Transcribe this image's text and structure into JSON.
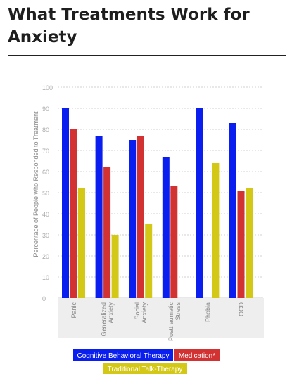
{
  "page": {
    "title": "What Treatments Work for Anxiety"
  },
  "chart_data": {
    "type": "bar",
    "title": "What Treatments Work for Anxiety",
    "ylabel": "Percentage of People who Responded to Treatment",
    "xlabel": "",
    "ylim": [
      0,
      100
    ],
    "yticks": [
      0,
      10,
      20,
      30,
      40,
      50,
      60,
      70,
      80,
      90,
      100
    ],
    "grid": true,
    "legend_position": "bottom",
    "categories": [
      "Panic",
      "Generalized Anxiety",
      "Social Anxiety",
      "Posttraumatic Stress",
      "Phobia",
      "OCD"
    ],
    "category_lines": [
      [
        "Panic"
      ],
      [
        "Generalized",
        "Anxiety"
      ],
      [
        "Social",
        "Anxiety"
      ],
      [
        "Posttraumatic",
        "Stress"
      ],
      [
        "Phobia"
      ],
      [
        "OCD"
      ]
    ],
    "series": [
      {
        "name": "Cognitive Behavioral Therapy",
        "color": "#0a1ef0",
        "values": [
          90,
          77,
          75,
          67,
          90,
          83
        ]
      },
      {
        "name": "Medication*",
        "color": "#d23232",
        "values": [
          80,
          62,
          77,
          53,
          null,
          51
        ]
      },
      {
        "name": "Traditional Talk-Therapy",
        "color": "#d4c816",
        "values": [
          52,
          30,
          35,
          null,
          64,
          52
        ]
      }
    ],
    "colors": {
      "grid": "#d2d2d2",
      "tick_text": "#aaaaaa",
      "label_text": "#888888",
      "category_band": "#eeeeee",
      "legend_text": "#ffffff"
    }
  }
}
